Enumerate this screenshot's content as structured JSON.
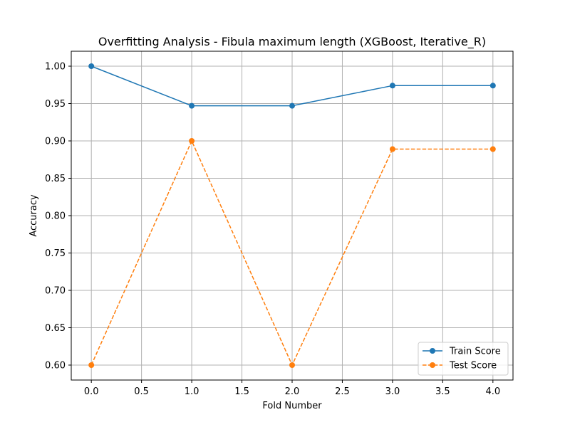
{
  "chart_data": {
    "type": "line",
    "title": "Overfitting Analysis - Fibula maximum length (XGBoost, Iterative_R)",
    "xlabel": "Fold Number",
    "ylabel": "Accuracy",
    "x": [
      0,
      1,
      2,
      3,
      4
    ],
    "xlim": [
      -0.2,
      4.2
    ],
    "ylim": [
      0.58,
      1.02
    ],
    "xticks": [
      0.0,
      0.5,
      1.0,
      1.5,
      2.0,
      2.5,
      3.0,
      3.5,
      4.0
    ],
    "xtick_labels": [
      "0.0",
      "0.5",
      "1.0",
      "1.5",
      "2.0",
      "2.5",
      "3.0",
      "3.5",
      "4.0"
    ],
    "yticks": [
      0.6,
      0.65,
      0.7,
      0.75,
      0.8,
      0.85,
      0.9,
      0.95,
      1.0
    ],
    "ytick_labels": [
      "0.60",
      "0.65",
      "0.70",
      "0.75",
      "0.80",
      "0.85",
      "0.90",
      "0.95",
      "1.00"
    ],
    "grid": true,
    "legend_position": "lower-right",
    "series": [
      {
        "name": "Train Score",
        "values": [
          1.0,
          0.947,
          0.947,
          0.974,
          0.974
        ],
        "color": "#1f77b4",
        "linestyle": "solid",
        "marker": "circle"
      },
      {
        "name": "Test Score",
        "values": [
          0.6,
          0.9,
          0.6,
          0.889,
          0.889
        ],
        "color": "#ff7f0e",
        "linestyle": "dashed",
        "marker": "circle"
      }
    ]
  }
}
